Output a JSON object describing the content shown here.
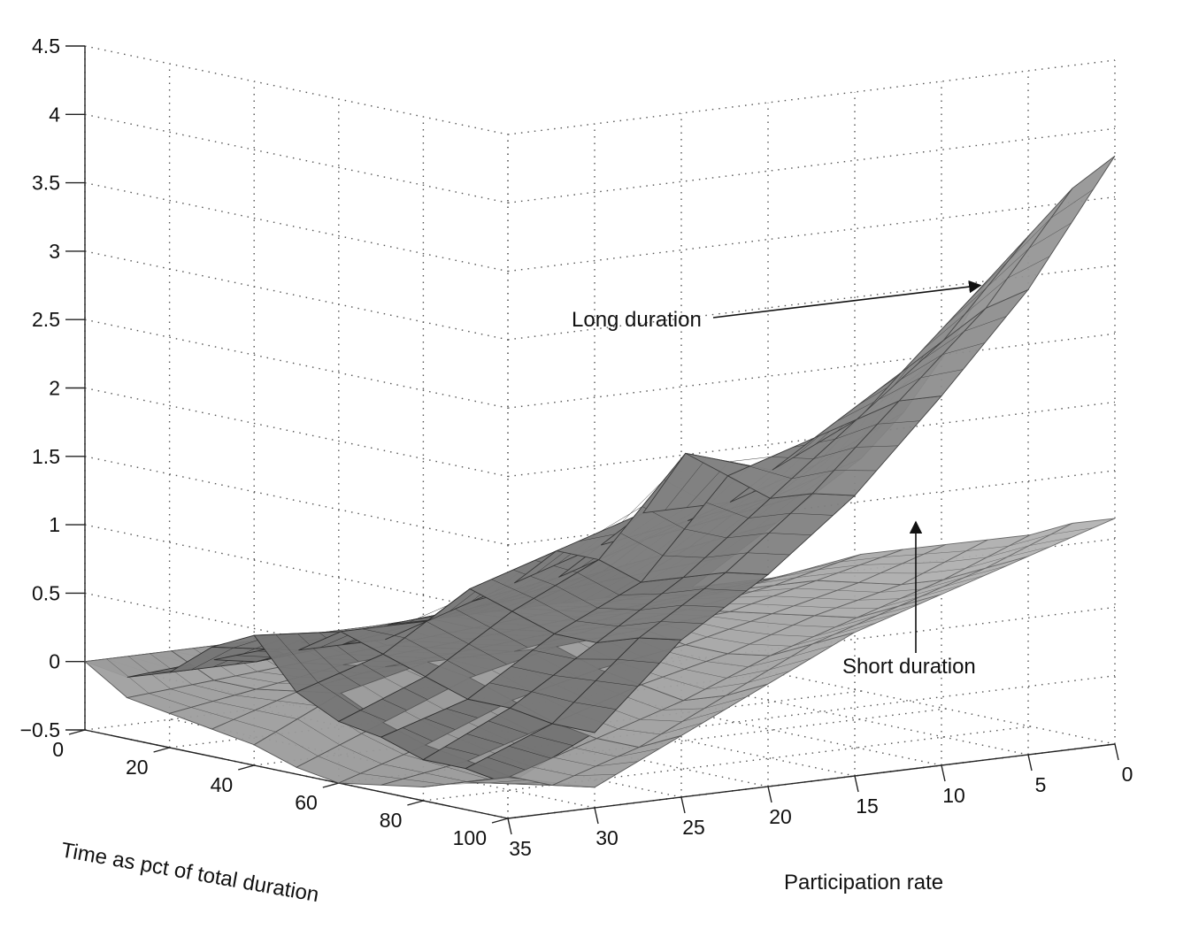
{
  "chart_data": {
    "type": "surface",
    "title": "",
    "xlabel": "Time as pct of total duration",
    "ylabel": "Participation rate",
    "zlabel": "",
    "xlim": [
      0,
      100
    ],
    "ylim": [
      0,
      35
    ],
    "zlim": [
      -0.5,
      4.5
    ],
    "x_ticks": [
      "0",
      "20",
      "40",
      "60",
      "80",
      "100"
    ],
    "y_ticks": [
      "35",
      "30",
      "25",
      "20",
      "15",
      "10",
      "5",
      "0"
    ],
    "z_ticks": [
      "4.5",
      "4",
      "3.5",
      "3",
      "2.5",
      "2",
      "1.5",
      "1",
      "0.5",
      "0",
      "−0.5"
    ],
    "grid": true,
    "participation": [
      0,
      5,
      10,
      15,
      20,
      25,
      30,
      35
    ],
    "time": [
      0,
      10,
      20,
      30,
      40,
      50,
      60,
      70,
      80,
      90,
      100
    ],
    "series": [
      {
        "name": "Long duration",
        "values": [
          [
            0.0,
            0.3,
            0.6,
            0.9,
            1.2,
            1.6,
            2.1,
            2.7,
            3.1,
            3.5,
            3.8
          ],
          [
            0.0,
            0.25,
            0.5,
            0.8,
            1.0,
            1.3,
            1.7,
            2.1,
            2.4,
            2.7,
            2.9
          ],
          [
            0.0,
            0.2,
            0.4,
            0.7,
            0.9,
            1.1,
            1.4,
            1.7,
            1.9,
            2.1,
            2.2
          ],
          [
            0.0,
            0.15,
            0.3,
            0.5,
            0.8,
            1.1,
            1.6,
            1.5,
            1.4,
            1.5,
            1.55
          ],
          [
            0.0,
            0.1,
            0.2,
            0.4,
            0.6,
            0.9,
            0.9,
            0.8,
            0.9,
            1.0,
            1.05
          ],
          [
            0.0,
            0.05,
            0.1,
            0.2,
            0.4,
            0.7,
            0.6,
            0.5,
            0.5,
            0.6,
            0.65
          ],
          [
            0.0,
            0.0,
            0.05,
            0.2,
            0.4,
            0.3,
            0.2,
            0.1,
            0.1,
            0.05,
            0.05
          ],
          [
            0.0,
            -0.05,
            0.05,
            0.3,
            0.45,
            0.1,
            -0.05,
            -0.1,
            -0.2,
            -0.2,
            -0.25
          ]
        ]
      },
      {
        "name": "Short duration",
        "values": [
          [
            0.0,
            0.1,
            0.2,
            0.35,
            0.5,
            0.6,
            0.7,
            0.8,
            0.9,
            1.05,
            1.15
          ],
          [
            0.0,
            0.08,
            0.15,
            0.25,
            0.35,
            0.45,
            0.5,
            0.55,
            0.65,
            0.8,
            0.95
          ],
          [
            0.0,
            0.05,
            0.1,
            0.2,
            0.25,
            0.3,
            0.35,
            0.4,
            0.45,
            0.6,
            0.75
          ],
          [
            0.0,
            0.0,
            0.05,
            0.1,
            0.2,
            0.25,
            0.2,
            0.2,
            0.25,
            0.4,
            0.55
          ],
          [
            0.0,
            -0.05,
            0.0,
            0.05,
            0.1,
            0.2,
            0.1,
            0.05,
            0.0,
            0.1,
            0.25
          ],
          [
            0.0,
            -0.1,
            -0.05,
            0.0,
            0.1,
            0.05,
            -0.05,
            -0.15,
            -0.2,
            -0.2,
            -0.05
          ],
          [
            0.0,
            -0.15,
            -0.15,
            -0.1,
            -0.05,
            -0.2,
            -0.3,
            -0.35,
            -0.4,
            -0.4,
            -0.35
          ],
          [
            0.0,
            -0.2,
            -0.25,
            -0.3,
            -0.35,
            -0.45,
            -0.5,
            -0.45,
            -0.4,
            -0.3,
            -0.2
          ]
        ]
      }
    ],
    "annotations": [
      {
        "text": "Long duration",
        "points_to": "Long duration"
      },
      {
        "text": "Short duration",
        "points_to": "Short duration"
      }
    ]
  }
}
